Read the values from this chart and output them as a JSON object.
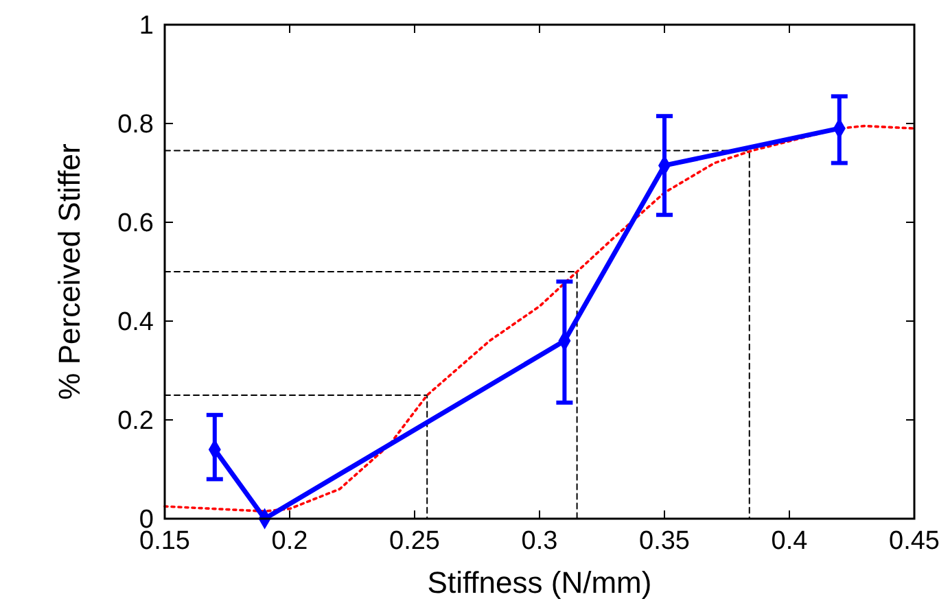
{
  "chart_data": {
    "type": "line",
    "xlabel": "Stiffness (N/mm)",
    "ylabel": "% Perceived Stiffer",
    "xlim": [
      0.15,
      0.45
    ],
    "xticks": [
      0.15,
      0.2,
      0.25,
      0.3,
      0.35,
      0.4,
      0.45
    ],
    "ylim": [
      0,
      1
    ],
    "yticks": [
      0,
      0.2,
      0.4,
      0.6,
      0.8,
      1
    ],
    "grid": false,
    "series": [
      {
        "color": "#000000",
        "line_style": "dashed",
        "marker": "none",
        "x": [
          0.15,
          0.255,
          0.255
        ],
        "values": [
          0.25,
          0.25,
          0
        ]
      },
      {
        "color": "#000000",
        "line_style": "dashed",
        "marker": "none",
        "x": [
          0.15,
          0.315,
          0.315
        ],
        "values": [
          0.5,
          0.5,
          0
        ]
      },
      {
        "color": "#000000",
        "line_style": "dashed",
        "marker": "none",
        "x": [
          0.15,
          0.384,
          0.384
        ],
        "values": [
          0.745,
          0.745,
          0
        ]
      },
      {
        "color": "#ff0000",
        "line_style": "dotted",
        "marker": "none",
        "x": [
          0.15,
          0.17,
          0.19,
          0.2,
          0.22,
          0.24,
          0.255,
          0.28,
          0.3,
          0.315,
          0.33,
          0.35,
          0.37,
          0.385,
          0.42,
          0.43,
          0.45
        ],
        "values": [
          0.025,
          0.02,
          0.015,
          0.02,
          0.06,
          0.15,
          0.25,
          0.36,
          0.43,
          0.5,
          0.57,
          0.66,
          0.72,
          0.745,
          0.79,
          0.795,
          0.79
        ]
      },
      {
        "color": "#0000ff",
        "line_style": "solid",
        "marker": "diamond",
        "x": [
          0.17,
          0.19,
          0.31,
          0.35,
          0.42
        ],
        "values": [
          0.14,
          0.0,
          0.36,
          0.715,
          0.79
        ],
        "errors": [
          [
            0.08,
            0.21
          ],
          null,
          [
            0.235,
            0.48
          ],
          [
            0.615,
            0.815
          ],
          [
            0.72,
            0.855
          ]
        ]
      }
    ]
  }
}
